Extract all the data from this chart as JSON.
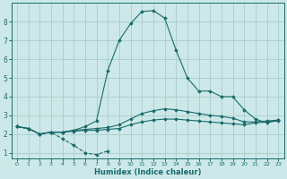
{
  "xlabel": "Humidex (Indice chaleur)",
  "background_color": "#cce8e8",
  "grid_color": "#aacccc",
  "line_color": "#1a6b6b",
  "xlim": [
    -0.5,
    23.5
  ],
  "ylim": [
    0.7,
    9.0
  ],
  "yticks": [
    1,
    2,
    3,
    4,
    5,
    6,
    7,
    8
  ],
  "xticks": [
    0,
    1,
    2,
    3,
    4,
    5,
    6,
    7,
    8,
    9,
    10,
    11,
    12,
    13,
    14,
    15,
    16,
    17,
    18,
    19,
    20,
    21,
    22,
    23
  ],
  "lines": [
    {
      "x": [
        0,
        1,
        2,
        3,
        4,
        5,
        6,
        7,
        8
      ],
      "y": [
        2.4,
        2.3,
        2.0,
        2.1,
        1.75,
        1.4,
        1.0,
        0.9,
        1.1
      ],
      "linestyle": "--"
    },
    {
      "x": [
        0,
        1,
        2,
        3,
        4,
        5,
        6,
        7,
        8,
        9,
        10,
        11,
        12,
        13,
        14,
        15,
        16,
        17,
        18,
        19,
        20,
        21,
        22,
        23
      ],
      "y": [
        2.4,
        2.3,
        2.0,
        2.1,
        2.1,
        2.15,
        2.2,
        2.2,
        2.25,
        2.3,
        2.5,
        2.65,
        2.75,
        2.8,
        2.8,
        2.75,
        2.7,
        2.65,
        2.6,
        2.55,
        2.5,
        2.6,
        2.65,
        2.7
      ],
      "linestyle": "-"
    },
    {
      "x": [
        0,
        1,
        2,
        3,
        4,
        5,
        6,
        7,
        8,
        9,
        10,
        11,
        12,
        13,
        14,
        15,
        16,
        17,
        18,
        19,
        20,
        21,
        22,
        23
      ],
      "y": [
        2.4,
        2.3,
        2.0,
        2.1,
        2.1,
        2.2,
        2.25,
        2.3,
        2.35,
        2.5,
        2.8,
        3.1,
        3.25,
        3.35,
        3.3,
        3.2,
        3.1,
        3.0,
        2.95,
        2.85,
        2.65,
        2.65,
        2.7,
        2.75
      ],
      "linestyle": "-"
    },
    {
      "x": [
        0,
        1,
        2,
        3,
        4,
        5,
        6,
        7,
        8,
        9,
        10,
        11,
        12,
        13,
        14,
        15,
        16,
        17,
        18,
        19,
        20,
        21,
        22,
        23
      ],
      "y": [
        2.4,
        2.3,
        2.0,
        2.1,
        2.1,
        2.2,
        2.4,
        2.7,
        5.4,
        7.0,
        7.9,
        8.55,
        8.6,
        8.2,
        6.5,
        5.0,
        4.3,
        4.3,
        4.0,
        4.0,
        3.3,
        2.8,
        2.6,
        2.75
      ],
      "linestyle": "-"
    }
  ]
}
